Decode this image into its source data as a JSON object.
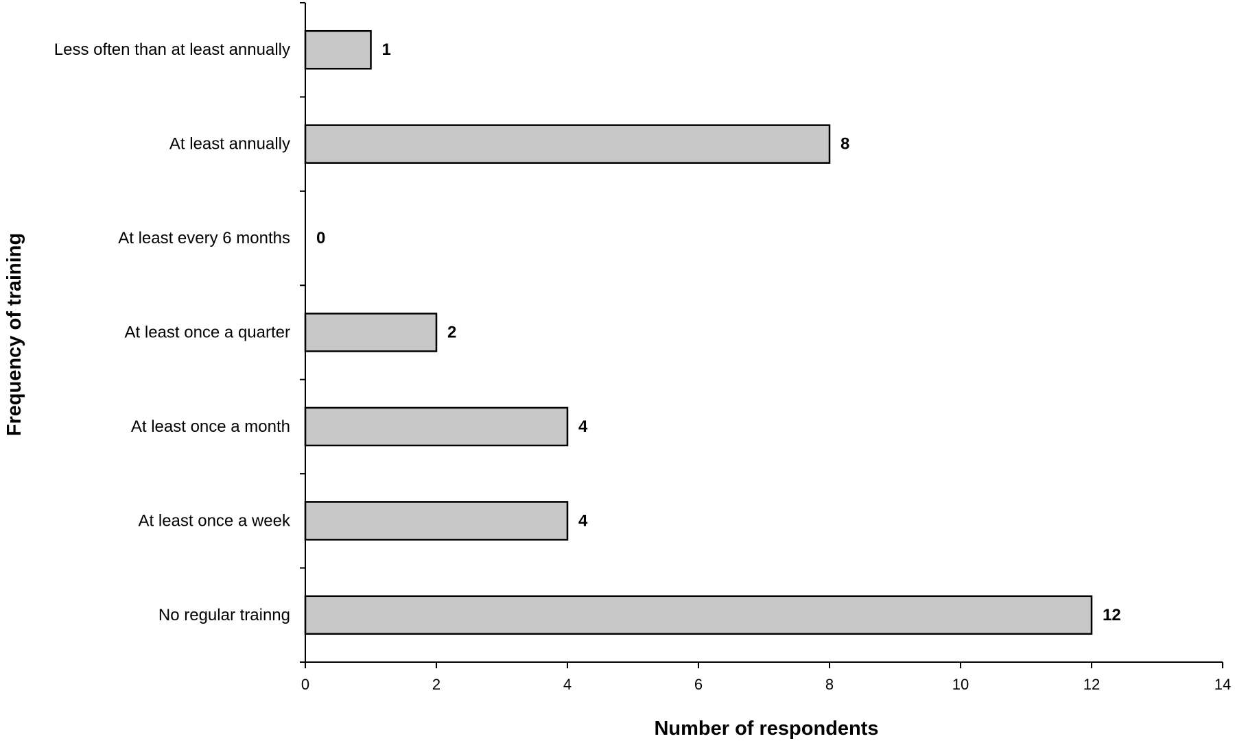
{
  "chart_data": {
    "type": "bar",
    "orientation": "horizontal",
    "categories": [
      "Less often than at least annually",
      "At least annually",
      "At least every 6 months",
      "At least once a quarter",
      "At least once a month",
      "At least once a week",
      "No regular trainng"
    ],
    "values": [
      1,
      8,
      0,
      2,
      4,
      4,
      12
    ],
    "value_labels": [
      "1",
      "8",
      "0",
      "2",
      "4",
      "4",
      "12"
    ],
    "xlabel": "Number of respondents",
    "ylabel": "Frequency of training",
    "xlim": [
      0,
      14
    ],
    "xticks": [
      0,
      2,
      4,
      6,
      8,
      10,
      12,
      14
    ],
    "grid": false,
    "bar_color": "#c8c8c8",
    "bar_edge_color": "#000000"
  }
}
